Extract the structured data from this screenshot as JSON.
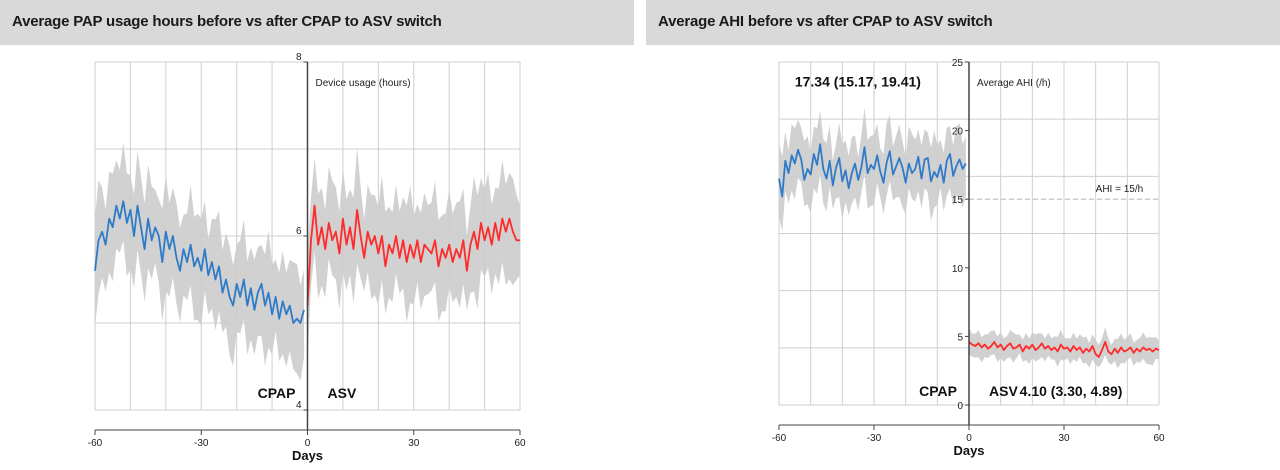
{
  "colors": {
    "before": "#2f7bc8",
    "after": "#ff2a2a",
    "band": "#cccccc",
    "grid": "#cfcfcf",
    "header": "#d9d9d9"
  },
  "chart_data": [
    {
      "type": "line",
      "title": "Average PAP usage hours before vs after CPAP to ASV switch",
      "xlabel": "Days",
      "ylabel": "Device usage (hours)",
      "xlim": [
        -60,
        60
      ],
      "ylim": [
        4,
        8
      ],
      "xticks": [
        "-60",
        "-30",
        "0",
        "30",
        "60"
      ],
      "yticks": [
        "4",
        "6",
        "8"
      ],
      "period_labels": {
        "before": "CPAP",
        "after": "ASV"
      },
      "band_halfwidth": 0.55,
      "series": [
        {
          "name": "CPAP",
          "x": [
            -60,
            -59,
            -58,
            -57,
            -56,
            -55,
            -54,
            -53,
            -52,
            -51,
            -50,
            -49,
            -48,
            -47,
            -46,
            -45,
            -44,
            -43,
            -42,
            -41,
            -40,
            -39,
            -38,
            -37,
            -36,
            -35,
            -34,
            -33,
            -32,
            -31,
            -30,
            -29,
            -28,
            -27,
            -26,
            -25,
            -24,
            -23,
            -22,
            -21,
            -20,
            -19,
            -18,
            -17,
            -16,
            -15,
            -14,
            -13,
            -12,
            -11,
            -10,
            -9,
            -8,
            -7,
            -6,
            -5,
            -4,
            -3,
            -2,
            -1
          ],
          "y": [
            5.6,
            5.95,
            6.05,
            5.9,
            6.2,
            6.1,
            6.35,
            6.2,
            6.4,
            6.15,
            6.3,
            6.0,
            6.35,
            6.1,
            5.85,
            6.2,
            5.95,
            6.1,
            6.0,
            5.7,
            6.05,
            5.85,
            6.0,
            5.75,
            5.6,
            5.85,
            5.7,
            5.9,
            5.65,
            5.75,
            5.6,
            5.85,
            5.55,
            5.7,
            5.5,
            5.65,
            5.35,
            5.5,
            5.3,
            5.2,
            5.45,
            5.3,
            5.5,
            5.2,
            5.4,
            5.15,
            5.35,
            5.45,
            5.2,
            5.35,
            5.1,
            5.3,
            5.05,
            5.25,
            5.1,
            5.2,
            5.0,
            5.05,
            5.0,
            5.15
          ]
        },
        {
          "name": "ASV",
          "x": [
            0,
            1,
            2,
            3,
            4,
            5,
            6,
            7,
            8,
            9,
            10,
            11,
            12,
            13,
            14,
            15,
            16,
            17,
            18,
            19,
            20,
            21,
            22,
            23,
            24,
            25,
            26,
            27,
            28,
            29,
            30,
            31,
            32,
            33,
            34,
            35,
            36,
            37,
            38,
            39,
            40,
            41,
            42,
            43,
            44,
            45,
            46,
            47,
            48,
            49,
            50,
            51,
            52,
            53,
            54,
            55,
            56,
            57,
            58,
            59,
            60
          ],
          "y": [
            5.2,
            5.95,
            6.35,
            5.9,
            6.1,
            5.85,
            6.15,
            5.95,
            6.05,
            5.8,
            6.2,
            5.9,
            6.1,
            5.85,
            6.3,
            6.0,
            5.75,
            6.05,
            5.9,
            6.0,
            5.8,
            6.0,
            5.65,
            5.9,
            5.8,
            6.0,
            5.75,
            5.95,
            5.7,
            5.9,
            5.75,
            5.95,
            5.7,
            5.9,
            5.85,
            5.8,
            5.95,
            5.65,
            5.85,
            5.75,
            5.9,
            5.7,
            5.85,
            5.75,
            5.95,
            5.6,
            5.9,
            6.05,
            5.85,
            6.15,
            5.95,
            6.1,
            5.9,
            6.15,
            5.95,
            6.2,
            6.05,
            6.2,
            6.05,
            5.95,
            5.95
          ]
        }
      ]
    },
    {
      "type": "line",
      "title": "Average AHI before vs after CPAP to ASV switch",
      "xlabel": "Days",
      "ylabel": "Average AHI (/h)",
      "xlim": [
        -60,
        60
      ],
      "ylim": [
        0,
        25
      ],
      "xticks": [
        "-60",
        "-30",
        "0",
        "30",
        "60"
      ],
      "yticks": [
        "0",
        "5",
        "10",
        "15",
        "20",
        "25"
      ],
      "period_labels": {
        "before": "CPAP",
        "after": "ASV"
      },
      "band_halfwidth": [
        2.3,
        0.9
      ],
      "reference_line": {
        "y": 15,
        "label": "AHI = 15/h"
      },
      "annotations": {
        "before": "17.34 (15.17, 19.41)",
        "after": "4.10 (3.30, 4.89)"
      },
      "series": [
        {
          "name": "CPAP",
          "x": [
            -60,
            -59,
            -58,
            -57,
            -56,
            -55,
            -54,
            -53,
            -52,
            -51,
            -50,
            -49,
            -48,
            -47,
            -46,
            -45,
            -44,
            -43,
            -42,
            -41,
            -40,
            -39,
            -38,
            -37,
            -36,
            -35,
            -34,
            -33,
            -32,
            -31,
            -30,
            -29,
            -28,
            -27,
            -26,
            -25,
            -24,
            -23,
            -22,
            -21,
            -20,
            -19,
            -18,
            -17,
            -16,
            -15,
            -14,
            -13,
            -12,
            -11,
            -10,
            -9,
            -8,
            -7,
            -6,
            -5,
            -4,
            -3,
            -2,
            -1
          ],
          "y": [
            16.5,
            15.2,
            17.8,
            16.9,
            18.2,
            17.6,
            18.6,
            17.9,
            16.4,
            17.2,
            16.8,
            18.3,
            17.5,
            19.0,
            17.2,
            16.5,
            17.8,
            16.0,
            17.3,
            18.0,
            16.3,
            17.1,
            15.8,
            16.9,
            17.6,
            16.4,
            17.3,
            18.8,
            16.9,
            17.5,
            17.2,
            18.2,
            17.0,
            16.2,
            17.7,
            18.5,
            16.8,
            17.4,
            18.0,
            17.3,
            16.2,
            17.6,
            16.9,
            17.2,
            18.1,
            16.5,
            17.9,
            18.0,
            16.3,
            17.0,
            16.6,
            17.5,
            16.2,
            17.8,
            18.3,
            16.7,
            17.4,
            17.9,
            17.2,
            17.6
          ]
        },
        {
          "name": "ASV",
          "x": [
            0,
            1,
            2,
            3,
            4,
            5,
            6,
            7,
            8,
            9,
            10,
            11,
            12,
            13,
            14,
            15,
            16,
            17,
            18,
            19,
            20,
            21,
            22,
            23,
            24,
            25,
            26,
            27,
            28,
            29,
            30,
            31,
            32,
            33,
            34,
            35,
            36,
            37,
            38,
            39,
            40,
            41,
            42,
            43,
            44,
            45,
            46,
            47,
            48,
            49,
            50,
            51,
            52,
            53,
            54,
            55,
            56,
            57,
            58,
            59,
            60
          ],
          "y": [
            4.6,
            4.4,
            4.3,
            4.5,
            4.2,
            4.4,
            4.1,
            4.3,
            4.6,
            4.2,
            4.4,
            4.0,
            4.3,
            4.5,
            4.1,
            4.2,
            4.4,
            3.9,
            4.3,
            4.1,
            4.4,
            4.0,
            4.2,
            4.5,
            4.1,
            4.3,
            4.0,
            4.2,
            3.9,
            4.4,
            4.1,
            4.2,
            3.9,
            4.3,
            4.0,
            4.2,
            3.8,
            4.1,
            3.9,
            4.3,
            3.7,
            3.5,
            4.0,
            4.6,
            3.9,
            3.7,
            4.1,
            3.8,
            4.2,
            3.9,
            4.0,
            4.2,
            3.8,
            4.1,
            3.9,
            4.2,
            4.0,
            4.1,
            3.9,
            4.1,
            4.0
          ]
        }
      ]
    }
  ]
}
